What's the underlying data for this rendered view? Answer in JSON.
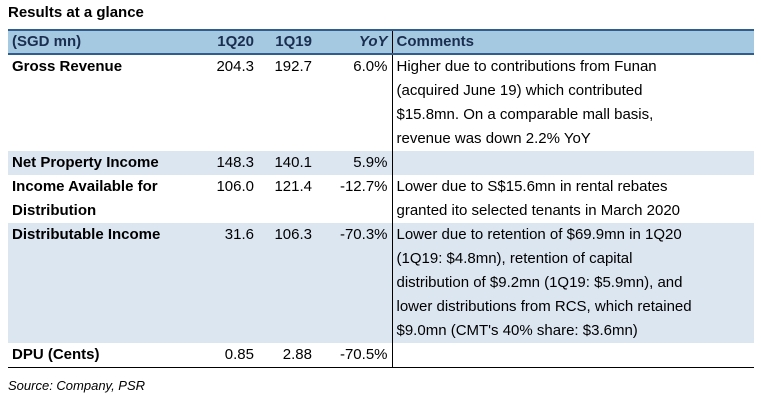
{
  "title": "Results at a glance",
  "headers": {
    "label": "(SGD mn)",
    "c1": "1Q20",
    "c2": "1Q19",
    "c3": "YoY",
    "comments": "Comments"
  },
  "rows": [
    {
      "label": "Gross Revenue",
      "q120": "204.3",
      "q119": "192.7",
      "yoy": "6.0%",
      "comment": [
        "Higher due to contributions from Funan",
        "(acquired June 19) which contributed",
        "$15.8mn. On a comparable mall basis,",
        "revenue was down 2.2% YoY"
      ]
    },
    {
      "label": "Net Property Income",
      "q120": "148.3",
      "q119": "140.1",
      "yoy": "5.9%",
      "comment": []
    },
    {
      "label": [
        "Income Available for",
        "Distribution"
      ],
      "q120": "106.0",
      "q119": "121.4",
      "yoy": "-12.7%",
      "comment": [
        "Lower due to S$15.6mn in rental rebates",
        "granted ito selected tenants in March 2020"
      ]
    },
    {
      "label": "Distributable Income",
      "q120": "31.6",
      "q119": "106.3",
      "yoy": "-70.3%",
      "comment": [
        "Lower due to retention of $69.9mn in 1Q20",
        "(1Q19: $4.8mn), retention of capital",
        "distribution of $9.2mn (1Q19: $5.9mn), and",
        "lower distributions from RCS, which retained",
        "$9.0mn (CMT's 40% share: $3.6mn)"
      ]
    },
    {
      "label": "DPU (Cents)",
      "q120": "0.85",
      "q119": "2.88",
      "yoy": "-70.5%",
      "comment": []
    }
  ],
  "source": "Source: Company, PSR",
  "colors": {
    "header_bg": "#a6c9e2",
    "shade_bg": "#dce6f1",
    "header_border": "#2e5d8e"
  }
}
